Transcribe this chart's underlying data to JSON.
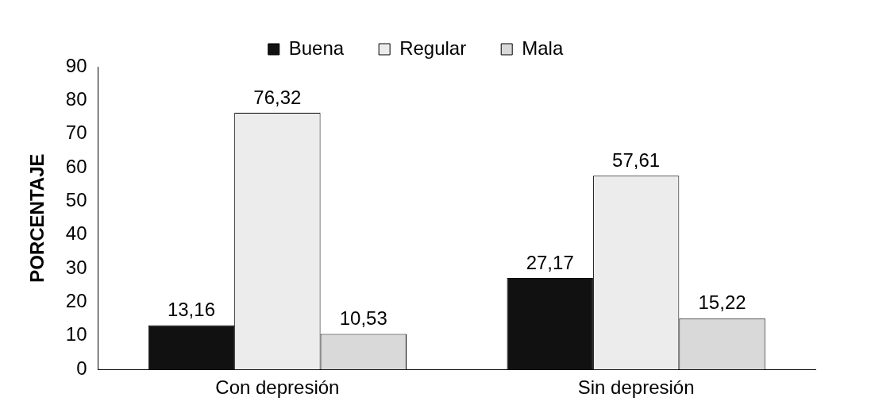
{
  "chart_data": {
    "type": "bar",
    "ylabel": "PORCENTAJE",
    "categories": [
      "Con depresión",
      "Sin depresión"
    ],
    "series": [
      {
        "name": "Buena",
        "color": "#111111",
        "values": [
          13.16,
          27.17
        ],
        "value_labels": [
          "13,16",
          "27,17"
        ]
      },
      {
        "name": "Regular",
        "color": "#ececec",
        "values": [
          76.32,
          57.61
        ],
        "value_labels": [
          "76,32",
          "57,61"
        ]
      },
      {
        "name": "Mala",
        "color": "#d9d9d9",
        "values": [
          10.53,
          15.22
        ],
        "value_labels": [
          "10,53",
          "15,22"
        ]
      }
    ],
    "ylim": [
      0,
      90
    ],
    "yticks": [
      0,
      10,
      20,
      30,
      40,
      50,
      60,
      70,
      80,
      90
    ],
    "grid": false,
    "legend": "top"
  }
}
